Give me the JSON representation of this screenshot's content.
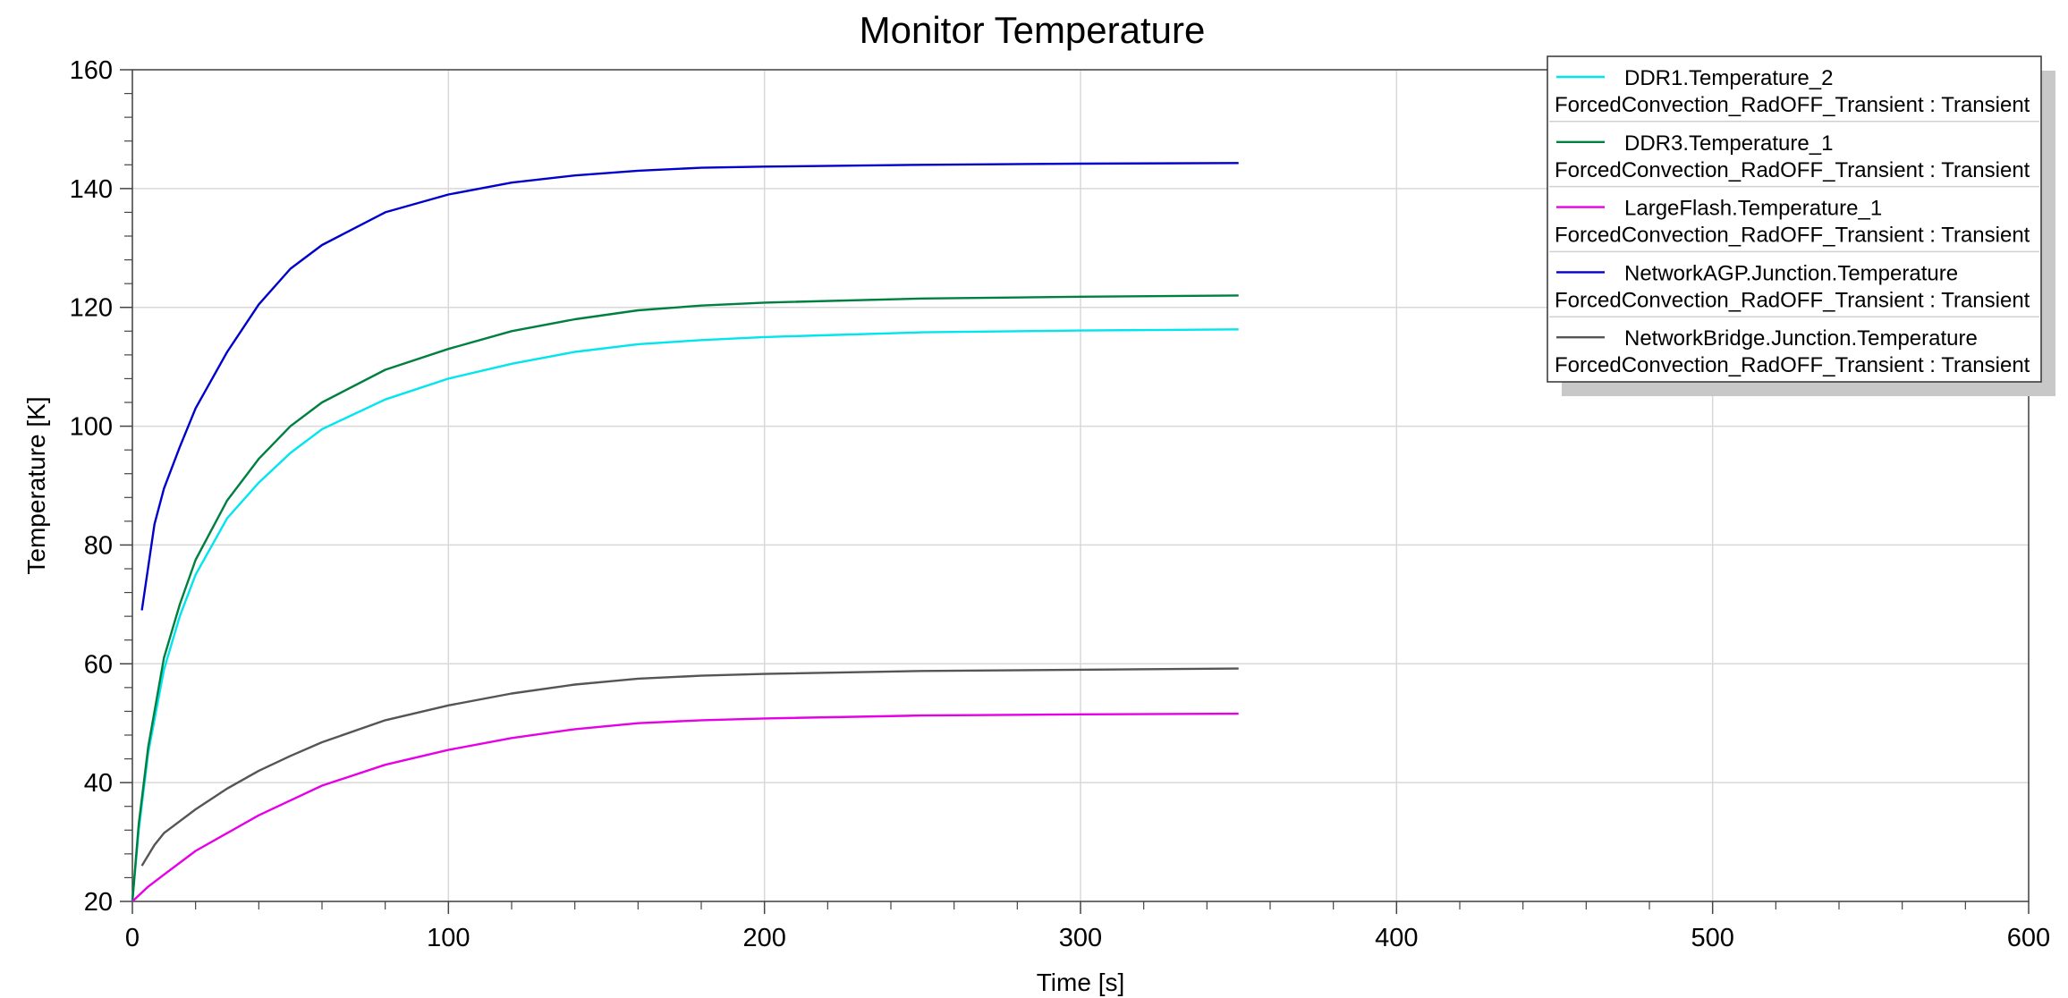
{
  "chart_data": {
    "type": "line",
    "title": "Monitor Temperature",
    "xlabel": "Time [s]",
    "ylabel": "Temperature [K]",
    "xlim": [
      0,
      600
    ],
    "ylim": [
      20,
      160
    ],
    "xticks": [
      0,
      100,
      200,
      300,
      400,
      500,
      600
    ],
    "yticks": [
      20,
      40,
      60,
      80,
      100,
      120,
      140,
      160
    ],
    "grid": true,
    "legend_position": "top-right",
    "series": [
      {
        "name": "DDR1.Temperature_2",
        "subtitle": "ForcedConvection_RadOFF_Transient : Transient",
        "color": "#00e5ee",
        "x": [
          0,
          2,
          5,
          10,
          15,
          20,
          30,
          40,
          50,
          60,
          80,
          100,
          120,
          140,
          160,
          180,
          200,
          250,
          300,
          350
        ],
        "y": [
          20,
          32,
          45,
          59,
          68,
          75,
          84.5,
          90.5,
          95.5,
          99.5,
          104.5,
          108,
          110.5,
          112.5,
          113.8,
          114.5,
          115,
          115.8,
          116.1,
          116.3
        ]
      },
      {
        "name": "DDR3.Temperature_1",
        "subtitle": "ForcedConvection_RadOFF_Transient : Transient",
        "color": "#008040",
        "x": [
          0,
          2,
          5,
          10,
          15,
          20,
          30,
          40,
          50,
          60,
          80,
          100,
          120,
          140,
          160,
          180,
          200,
          250,
          300,
          350
        ],
        "y": [
          20,
          33,
          46,
          61,
          70,
          77.5,
          87.5,
          94.5,
          100,
          104,
          109.5,
          113,
          116,
          118,
          119.5,
          120.3,
          120.8,
          121.5,
          121.8,
          122
        ]
      },
      {
        "name": "LargeFlash.Temperature_1",
        "subtitle": "ForcedConvection_RadOFF_Transient : Transient",
        "color": "#e600e6",
        "x": [
          0,
          5,
          10,
          20,
          30,
          40,
          50,
          60,
          80,
          100,
          120,
          140,
          160,
          180,
          200,
          250,
          300,
          350
        ],
        "y": [
          20,
          22.5,
          24.5,
          28.5,
          31.5,
          34.5,
          37,
          39.5,
          43,
          45.5,
          47.5,
          49,
          50,
          50.5,
          50.8,
          51.3,
          51.5,
          51.6
        ]
      },
      {
        "name": "NetworkAGP.Junction.Temperature",
        "subtitle": "ForcedConvection_RadOFF_Transient : Transient",
        "color": "#0000cc",
        "x": [
          3,
          7,
          10,
          15,
          20,
          30,
          40,
          50,
          60,
          80,
          100,
          120,
          140,
          160,
          180,
          200,
          250,
          300,
          350
        ],
        "y": [
          69,
          83.5,
          89.5,
          96.5,
          103,
          112.5,
          120.5,
          126.5,
          130.5,
          136,
          139,
          141,
          142.2,
          143,
          143.5,
          143.7,
          144,
          144.2,
          144.3
        ]
      },
      {
        "name": "NetworkBridge.Junction.Temperature",
        "subtitle": "ForcedConvection_RadOFF_Transient : Transient",
        "color": "#555555",
        "x": [
          3,
          7,
          10,
          15,
          20,
          30,
          40,
          50,
          60,
          80,
          100,
          120,
          140,
          160,
          180,
          200,
          250,
          300,
          350
        ],
        "y": [
          26,
          29.5,
          31.5,
          33.5,
          35.5,
          39,
          42,
          44.5,
          46.8,
          50.5,
          53,
          55,
          56.5,
          57.5,
          58,
          58.3,
          58.8,
          59,
          59.2
        ]
      }
    ]
  }
}
